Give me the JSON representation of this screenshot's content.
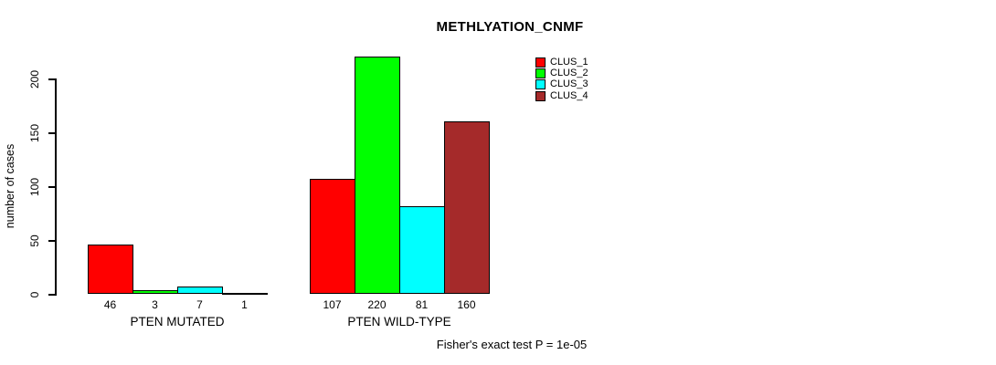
{
  "chart_data": {
    "type": "bar",
    "title": "METHLYATION_CNMF",
    "ylabel": "number of cases",
    "annotation": "Fisher's exact test P = 1e-05",
    "yticks": [
      0,
      50,
      100,
      150,
      200
    ],
    "ylim": [
      0,
      234
    ],
    "grid": false,
    "legend_position": "top-right",
    "bar_border_color": "#000000",
    "series": [
      {
        "name": "CLUS_1",
        "color": "#FF0000"
      },
      {
        "name": "CLUS_2",
        "color": "#00FF00"
      },
      {
        "name": "CLUS_3",
        "color": "#00FFFF"
      },
      {
        "name": "CLUS_4",
        "color": "#A52A2A"
      }
    ],
    "groups": [
      {
        "label": "PTEN MUTATED",
        "values": [
          46,
          3,
          7,
          1
        ]
      },
      {
        "label": "PTEN WILD-TYPE",
        "values": [
          107,
          220,
          81,
          160
        ]
      }
    ]
  }
}
